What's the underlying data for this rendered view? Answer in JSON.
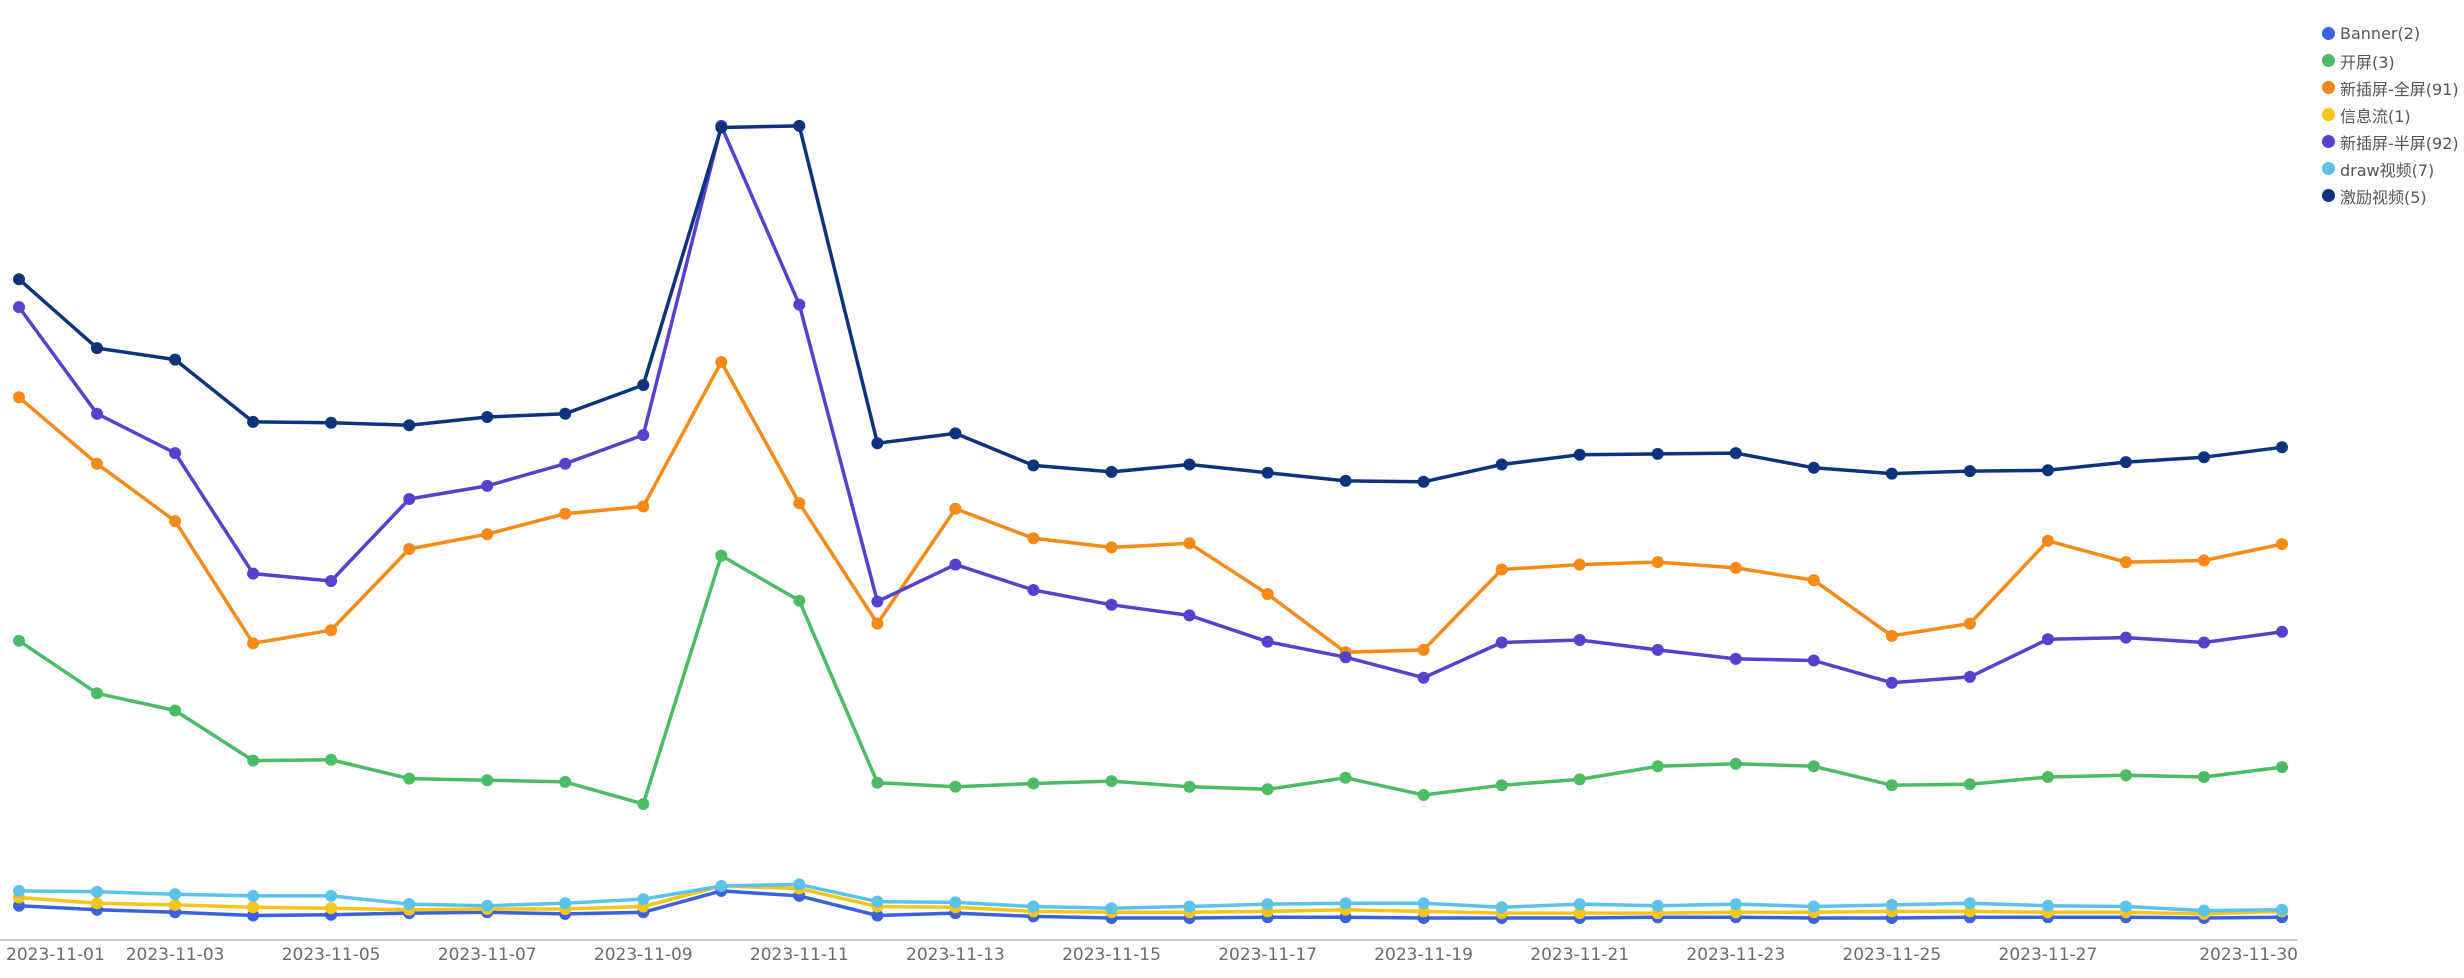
{
  "chart_data": {
    "type": "line",
    "title": "",
    "xlabel": "",
    "ylabel": "",
    "x": [
      "2023-11-01",
      "2023-11-02",
      "2023-11-03",
      "2023-11-04",
      "2023-11-05",
      "2023-11-06",
      "2023-11-07",
      "2023-11-08",
      "2023-11-09",
      "2023-11-10",
      "2023-11-11",
      "2023-11-12",
      "2023-11-13",
      "2023-11-14",
      "2023-11-15",
      "2023-11-16",
      "2023-11-17",
      "2023-11-18",
      "2023-11-19",
      "2023-11-20",
      "2023-11-21",
      "2023-11-22",
      "2023-11-23",
      "2023-11-24",
      "2023-11-25",
      "2023-11-26",
      "2023-11-27",
      "2023-11-28",
      "2023-11-29",
      "2023-11-30"
    ],
    "x_tick_labels": [
      "2023-11-01",
      "2023-11-03",
      "2023-11-05",
      "2023-11-07",
      "2023-11-09",
      "2023-11-11",
      "2023-11-13",
      "2023-11-15",
      "2023-11-17",
      "2023-11-19",
      "2023-11-21",
      "2023-11-23",
      "2023-11-25",
      "2023-11-27",
      "2023-11-30"
    ],
    "ylim": [
      0,
      1000
    ],
    "grid": false,
    "y_axis_labels_shown": false,
    "legend_position": "top-right",
    "series": [
      {
        "name": "Banner(2)",
        "color": "#3a62dc",
        "values": [
          15,
          10,
          7,
          3,
          4,
          6,
          7,
          5,
          7,
          33,
          27,
          3,
          6,
          2,
          0,
          0,
          1,
          1,
          0,
          0,
          0,
          1,
          1,
          0,
          0,
          1,
          1,
          1,
          0,
          1
        ]
      },
      {
        "name": "开屏(3)",
        "color": "#4cbc64",
        "values": [
          338,
          274,
          253,
          192,
          193,
          170,
          168,
          166,
          139,
          442,
          387,
          165,
          160,
          164,
          167,
          160,
          157,
          171,
          150,
          162,
          169,
          185,
          188,
          185,
          162,
          163,
          172,
          174,
          172,
          184
        ]
      },
      {
        "name": "新插屏-全屏(91)",
        "color": "#f58a17",
        "values": [
          635,
          554,
          484,
          335,
          351,
          450,
          468,
          493,
          502,
          678,
          506,
          359,
          499,
          463,
          452,
          457,
          395,
          324,
          327,
          425,
          431,
          434,
          427,
          412,
          344,
          359,
          460,
          434,
          436,
          456
        ]
      },
      {
        "name": "信息流(1)",
        "color": "#f5c519",
        "values": [
          25,
          18,
          16,
          13,
          12,
          10,
          11,
          11,
          14,
          39,
          36,
          14,
          13,
          8,
          7,
          7,
          8,
          10,
          8,
          6,
          6,
          6,
          7,
          7,
          8,
          8,
          7,
          7,
          5,
          8
        ]
      },
      {
        "name": "新插屏-半屏(92)",
        "color": "#5542cc",
        "values": [
          745,
          615,
          567,
          420,
          411,
          511,
          527,
          554,
          589,
          966,
          748,
          386,
          431,
          400,
          382,
          369,
          337,
          318,
          293,
          336,
          339,
          327,
          316,
          314,
          287,
          294,
          340,
          342,
          336,
          349
        ]
      },
      {
        "name": "draw视频(7)",
        "color": "#5bc3ea",
        "values": [
          33,
          32,
          29,
          27,
          27,
          17,
          15,
          18,
          23,
          39,
          41,
          20,
          19,
          14,
          12,
          14,
          17,
          18,
          18,
          13,
          17,
          15,
          17,
          14,
          16,
          18,
          15,
          14,
          9,
          10
        ]
      },
      {
        "name": "激励视频(5)",
        "color": "#0c337c",
        "values": [
          779,
          695,
          681,
          605,
          604,
          601,
          611,
          615,
          650,
          964,
          966,
          579,
          591,
          552,
          544,
          553,
          543,
          533,
          532,
          553,
          565,
          566,
          567,
          549,
          542,
          545,
          546,
          556,
          562,
          574
        ]
      }
    ]
  }
}
